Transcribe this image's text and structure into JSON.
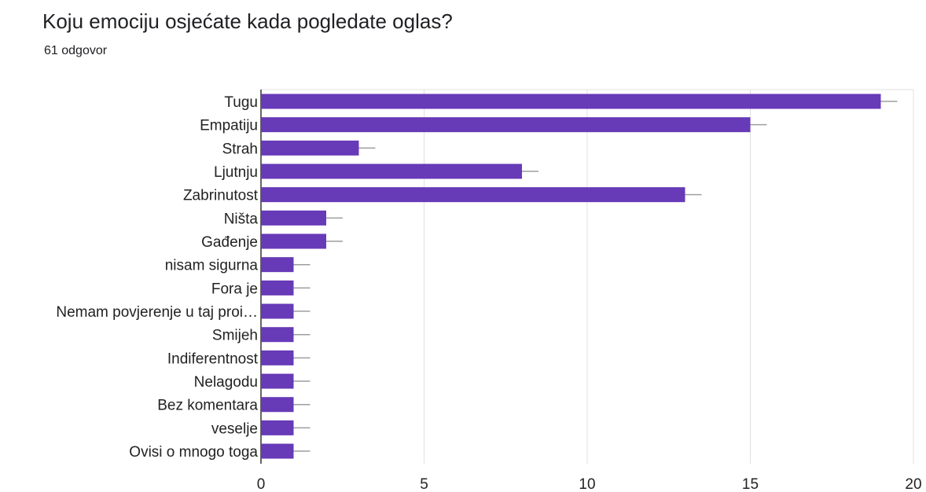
{
  "header": {
    "title": "Koju emociju osjećate kada pogledate oglas?",
    "subtitle": "61 odgovor"
  },
  "chart_data": {
    "type": "bar",
    "orientation": "horizontal",
    "title": "Koju emociju osjećate kada pogledate oglas?",
    "categories": [
      "Tugu",
      "Empatiju",
      "Strah",
      "Ljutnju",
      "Zabrinutost",
      "Ništa",
      "Gađenje",
      "nisam sigurna",
      "Fora je",
      "Nemam povjerenje u taj proi…",
      "Smijeh",
      "Indiferentnost",
      "Nelagodu",
      "Bez komentara",
      "veselje",
      "Ovisi o mnogo toga"
    ],
    "values": [
      19,
      15,
      3,
      8,
      13,
      2,
      2,
      1,
      1,
      1,
      1,
      1,
      1,
      1,
      1,
      1
    ],
    "xlim": [
      0,
      20
    ],
    "xticks": [
      0,
      5,
      10,
      15,
      20
    ],
    "grid": true,
    "error_bars": true,
    "bar_color": "#673ab7",
    "gridline_color": "#e0e0e0",
    "error_bar_color": "#9e9e9e"
  }
}
